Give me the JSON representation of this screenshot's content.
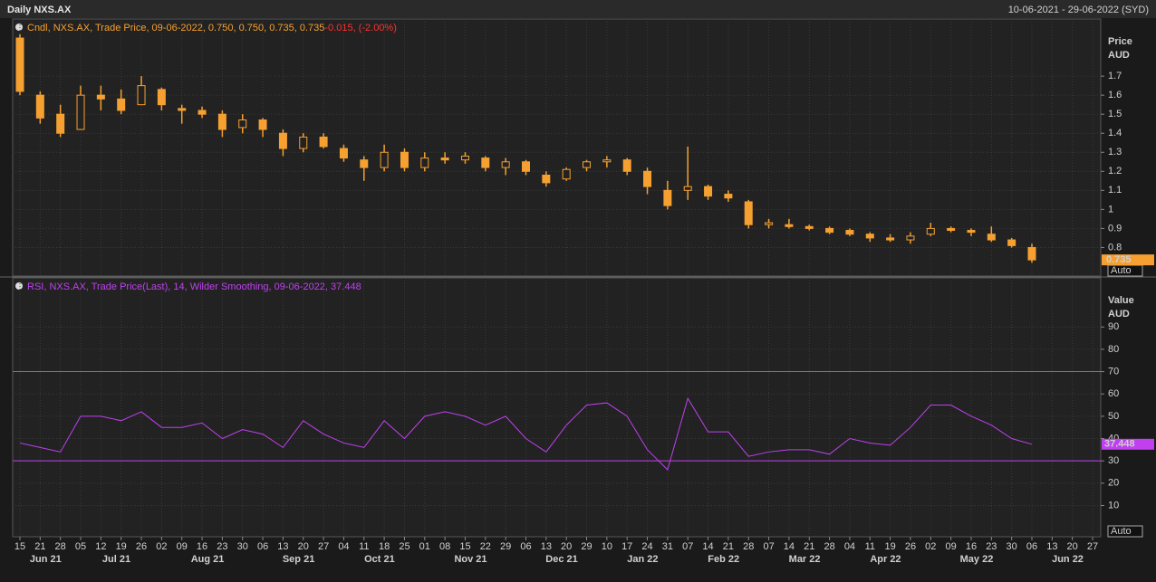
{
  "header": {
    "title": "Daily NXS.AX",
    "range": "10-06-2021 - 29-06-2022 (SYD)"
  },
  "x_axis": {
    "months": [
      {
        "label": "Jun 21",
        "weeks": [
          "15",
          "21",
          "28"
        ]
      },
      {
        "label": "Jul 21",
        "weeks": [
          "05",
          "12",
          "19",
          "26"
        ]
      },
      {
        "label": "Aug 21",
        "weeks": [
          "02",
          "09",
          "16",
          "23",
          "30"
        ]
      },
      {
        "label": "Sep 21",
        "weeks": [
          "06",
          "13",
          "20",
          "27"
        ]
      },
      {
        "label": "Oct 21",
        "weeks": [
          "04",
          "11",
          "18",
          "25"
        ]
      },
      {
        "label": "Nov 21",
        "weeks": [
          "01",
          "08",
          "15",
          "22",
          "29"
        ]
      },
      {
        "label": "Dec 21",
        "weeks": [
          "06",
          "13",
          "20",
          "29"
        ]
      },
      {
        "label": "Jan 22",
        "weeks": [
          "10",
          "17",
          "24",
          "31"
        ]
      },
      {
        "label": "Feb 22",
        "weeks": [
          "07",
          "14",
          "21",
          "28"
        ]
      },
      {
        "label": "Mar 22",
        "weeks": [
          "07",
          "14",
          "21",
          "28"
        ]
      },
      {
        "label": "Apr 22",
        "weeks": [
          "04",
          "11",
          "19",
          "26"
        ]
      },
      {
        "label": "May 22",
        "weeks": [
          "02",
          "09",
          "16",
          "23",
          "30"
        ]
      },
      {
        "label": "Jun 22",
        "weeks": [
          "06",
          "13",
          "20",
          "27"
        ]
      }
    ]
  },
  "chart_data": [
    {
      "type": "candlestick",
      "legend": "Cndl, NXS.AX, Trade Price, 09-06-2022, 0.750, 0.750, 0.735, 0.735",
      "change": "-0.015, (-2.00%)",
      "axis_label": [
        "Price",
        "AUD"
      ],
      "scale_button": "Auto",
      "last_value_label": "0.735",
      "color": "#f5a030",
      "ylim": [
        0.65,
        2.0
      ],
      "yticks": [
        0.8,
        0.9,
        1,
        1.1,
        1.2,
        1.3,
        1.4,
        1.5,
        1.6,
        1.7
      ],
      "open": [
        1.9,
        1.6,
        1.5,
        1.42,
        1.6,
        1.58,
        1.55,
        1.63,
        1.53,
        1.52,
        1.5,
        1.43,
        1.47,
        1.4,
        1.32,
        1.38,
        1.32,
        1.26,
        1.22,
        1.3,
        1.22,
        1.27,
        1.26,
        1.27,
        1.22,
        1.25,
        1.18,
        1.16,
        1.22,
        1.25,
        1.26,
        1.2,
        1.1,
        1.1,
        1.12,
        1.08,
        1.04,
        0.92,
        0.92,
        0.91,
        0.9,
        0.89,
        0.87,
        0.85,
        0.84,
        0.87,
        0.9,
        0.89,
        0.87,
        0.84,
        0.8,
        null,
        null,
        null
      ],
      "high": [
        1.92,
        1.62,
        1.55,
        1.65,
        1.65,
        1.63,
        1.7,
        1.64,
        1.55,
        1.54,
        1.52,
        1.5,
        1.48,
        1.42,
        1.4,
        1.4,
        1.34,
        1.28,
        1.34,
        1.32,
        1.3,
        1.3,
        1.3,
        1.28,
        1.27,
        1.26,
        1.2,
        1.22,
        1.26,
        1.28,
        1.27,
        1.22,
        1.15,
        1.33,
        1.13,
        1.1,
        1.05,
        0.95,
        0.95,
        0.92,
        0.91,
        0.9,
        0.88,
        0.87,
        0.88,
        0.93,
        0.91,
        0.9,
        0.91,
        0.85,
        0.82,
        null,
        null,
        null
      ],
      "low": [
        1.6,
        1.45,
        1.38,
        1.42,
        1.52,
        1.5,
        1.55,
        1.52,
        1.45,
        1.48,
        1.38,
        1.4,
        1.38,
        1.28,
        1.3,
        1.32,
        1.25,
        1.15,
        1.2,
        1.2,
        1.2,
        1.24,
        1.24,
        1.2,
        1.18,
        1.18,
        1.12,
        1.15,
        1.2,
        1.22,
        1.18,
        1.08,
        1.0,
        1.05,
        1.05,
        1.04,
        0.9,
        0.9,
        0.9,
        0.89,
        0.87,
        0.86,
        0.83,
        0.83,
        0.82,
        0.86,
        0.88,
        0.86,
        0.83,
        0.8,
        0.72,
        null,
        null,
        null
      ],
      "close": [
        1.62,
        1.48,
        1.4,
        1.6,
        1.58,
        1.52,
        1.65,
        1.55,
        1.52,
        1.5,
        1.42,
        1.47,
        1.42,
        1.32,
        1.38,
        1.33,
        1.27,
        1.22,
        1.3,
        1.22,
        1.27,
        1.26,
        1.28,
        1.22,
        1.25,
        1.2,
        1.14,
        1.21,
        1.25,
        1.26,
        1.2,
        1.12,
        1.02,
        1.12,
        1.07,
        1.06,
        0.92,
        0.93,
        0.91,
        0.9,
        0.88,
        0.87,
        0.85,
        0.84,
        0.86,
        0.9,
        0.89,
        0.88,
        0.84,
        0.81,
        0.735,
        null,
        null,
        null
      ]
    },
    {
      "type": "line",
      "legend": "RSI, NXS.AX, Trade Price(Last),  14, Wilder Smoothing, 09-06-2022, 37.448",
      "axis_label": [
        "Value",
        "AUD"
      ],
      "scale_button": "Auto",
      "last_value_label": "37.448",
      "color": "#c040f0",
      "ylim": [
        -4,
        112
      ],
      "yticks": [
        10,
        20,
        30,
        40,
        50,
        60,
        70,
        80,
        90
      ],
      "hlines": [
        70,
        30
      ],
      "values": [
        38,
        36,
        34,
        50,
        50,
        48,
        52,
        45,
        45,
        47,
        40,
        44,
        42,
        36,
        48,
        42,
        38,
        36,
        48,
        40,
        50,
        52,
        50,
        46,
        50,
        40,
        34,
        46,
        55,
        56,
        50,
        35,
        26,
        58,
        43,
        43,
        32,
        34,
        35,
        35,
        33,
        40,
        38,
        37,
        45,
        55,
        55,
        50,
        46,
        40,
        37.448,
        null,
        null,
        null
      ]
    }
  ]
}
